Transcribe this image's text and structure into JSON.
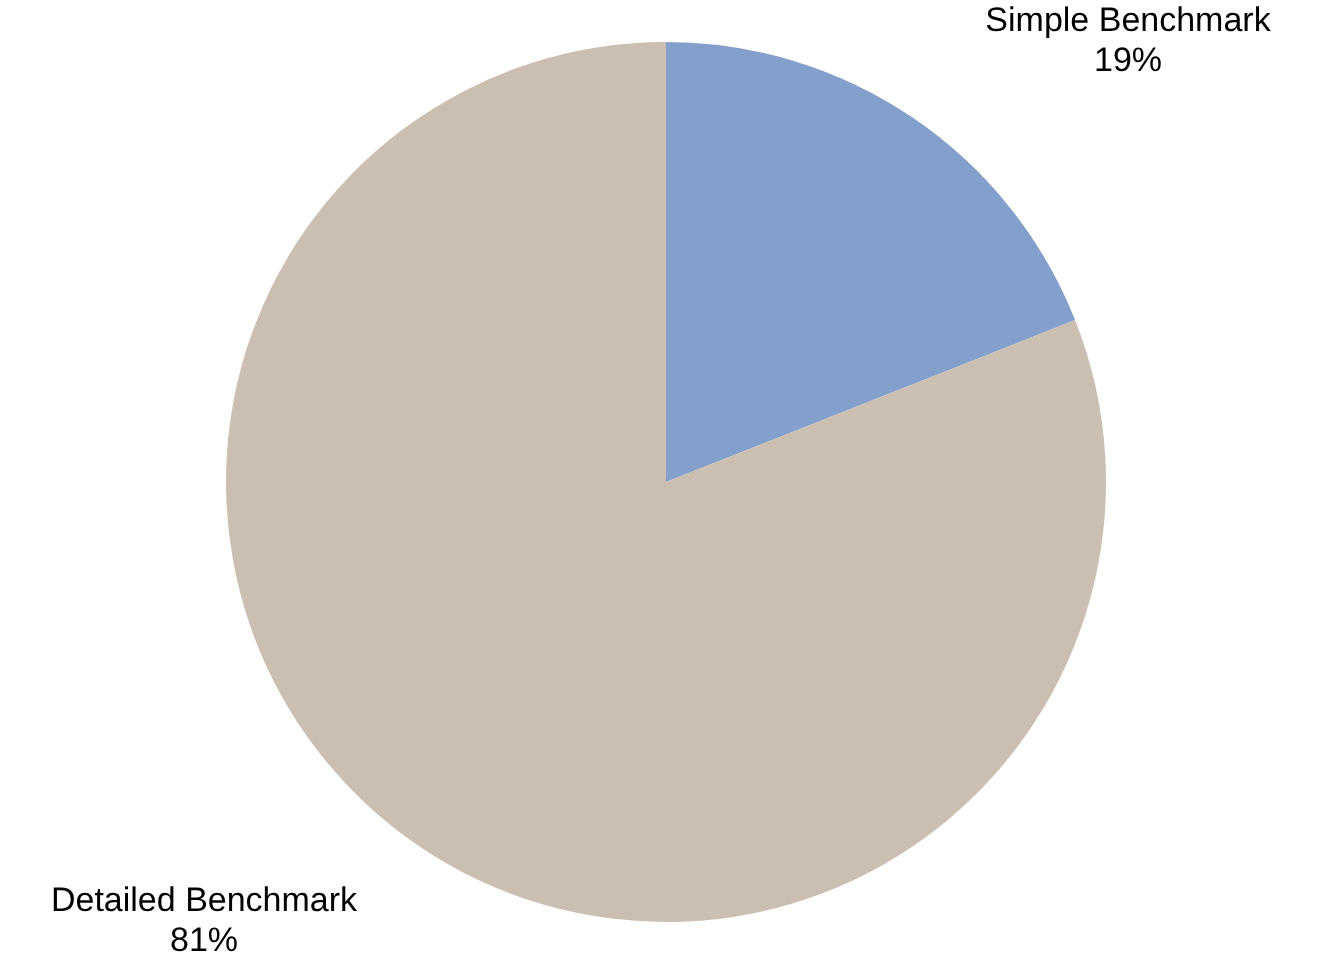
{
  "chart_data": {
    "type": "pie",
    "categories": [
      "Simple Benchmark",
      "Detailed Benchmark"
    ],
    "values": [
      19,
      81
    ],
    "value_labels": [
      "19%",
      "81%"
    ],
    "colors": [
      "#839fcb",
      "#cbbfb2"
    ],
    "legend": false
  }
}
